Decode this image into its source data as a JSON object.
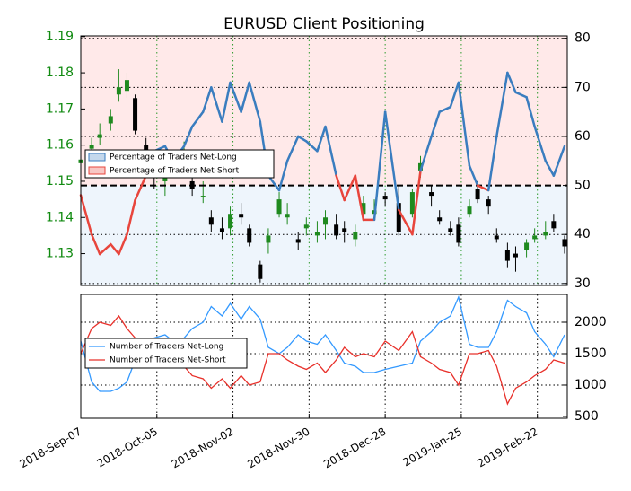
{
  "chart_data": [
    {
      "type": "candlestick",
      "title": "EURUSD Client Positioning",
      "x": [
        "2018-09-07",
        "2018-09-11",
        "2018-09-14",
        "2018-09-18",
        "2018-09-21",
        "2018-09-24",
        "2018-09-27",
        "2018-10-01",
        "2018-10-04",
        "2018-10-08",
        "2018-10-11",
        "2018-10-15",
        "2018-10-18",
        "2018-10-22",
        "2018-10-25",
        "2018-10-29",
        "2018-11-01",
        "2018-11-05",
        "2018-11-08",
        "2018-11-12",
        "2018-11-15",
        "2018-11-19",
        "2018-11-22",
        "2018-11-26",
        "2018-11-29",
        "2018-12-03",
        "2018-12-06",
        "2018-12-10",
        "2018-12-13",
        "2018-12-17",
        "2018-12-20",
        "2018-12-24",
        "2018-12-28",
        "2019-01-02",
        "2019-01-07",
        "2019-01-10",
        "2019-01-14",
        "2019-01-17",
        "2019-01-21",
        "2019-01-24",
        "2019-01-28",
        "2019-01-31",
        "2019-02-04",
        "2019-02-07",
        "2019-02-11",
        "2019-02-14",
        "2019-02-18",
        "2019-02-21",
        "2019-02-25",
        "2019-02-28",
        "2019-03-04"
      ],
      "open": [
        1.155,
        1.159,
        1.162,
        1.166,
        1.174,
        1.175,
        1.173,
        1.16,
        1.152,
        1.15,
        1.153,
        1.156,
        1.15,
        1.146,
        1.14,
        1.137,
        1.137,
        1.141,
        1.137,
        1.127,
        1.133,
        1.141,
        1.14,
        1.134,
        1.137,
        1.135,
        1.138,
        1.138,
        1.137,
        1.134,
        1.141,
        1.141,
        1.146,
        1.144,
        1.141,
        1.153,
        1.147,
        1.14,
        1.137,
        1.138,
        1.141,
        1.148,
        1.145,
        1.135,
        1.131,
        1.13,
        1.131,
        1.134,
        1.135,
        1.139,
        1.134
      ],
      "high": [
        1.158,
        1.162,
        1.166,
        1.17,
        1.181,
        1.18,
        1.174,
        1.162,
        1.155,
        1.153,
        1.158,
        1.161,
        1.152,
        1.15,
        1.142,
        1.14,
        1.143,
        1.144,
        1.138,
        1.128,
        1.137,
        1.147,
        1.144,
        1.136,
        1.14,
        1.139,
        1.142,
        1.141,
        1.139,
        1.138,
        1.146,
        1.145,
        1.147,
        1.149,
        1.148,
        1.157,
        1.149,
        1.142,
        1.139,
        1.14,
        1.145,
        1.15,
        1.146,
        1.137,
        1.133,
        1.132,
        1.134,
        1.137,
        1.139,
        1.141,
        1.135
      ],
      "low": [
        1.152,
        1.156,
        1.16,
        1.164,
        1.172,
        1.173,
        1.163,
        1.156,
        1.148,
        1.146,
        1.151,
        1.154,
        1.146,
        1.144,
        1.136,
        1.134,
        1.135,
        1.138,
        1.132,
        1.122,
        1.13,
        1.14,
        1.138,
        1.131,
        1.135,
        1.133,
        1.134,
        1.134,
        1.133,
        1.132,
        1.139,
        1.14,
        1.143,
        1.135,
        1.14,
        1.151,
        1.143,
        1.138,
        1.135,
        1.132,
        1.14,
        1.144,
        1.141,
        1.133,
        1.126,
        1.125,
        1.129,
        1.133,
        1.134,
        1.136,
        1.13
      ],
      "close": [
        1.156,
        1.16,
        1.163,
        1.168,
        1.176,
        1.178,
        1.164,
        1.158,
        1.151,
        1.152,
        1.154,
        1.158,
        1.148,
        1.146,
        1.138,
        1.136,
        1.141,
        1.14,
        1.133,
        1.123,
        1.135,
        1.145,
        1.141,
        1.133,
        1.138,
        1.136,
        1.14,
        1.135,
        1.136,
        1.136,
        1.144,
        1.142,
        1.145,
        1.136,
        1.147,
        1.155,
        1.146,
        1.139,
        1.136,
        1.133,
        1.143,
        1.145,
        1.143,
        1.134,
        1.128,
        1.129,
        1.133,
        1.135,
        1.136,
        1.137,
        1.132
      ],
      "up_color": "#1f8a1f",
      "down_color": "#000000",
      "ylim": [
        1.1212,
        1.1902
      ],
      "yticks": [
        1.13,
        1.14,
        1.15,
        1.16,
        1.17,
        1.18,
        1.19
      ],
      "ytick_color": "#108a10",
      "y2lim": [
        29.6,
        80.5
      ],
      "y2ticks": [
        30,
        40,
        50,
        60,
        70,
        80
      ],
      "sentiment": {
        "axis": "y2",
        "values": [
          48,
          40,
          36,
          38,
          36,
          40,
          47,
          52,
          57,
          58,
          55,
          58,
          62,
          65,
          70,
          63,
          71,
          65,
          71,
          63,
          52,
          49,
          55,
          60,
          59,
          57,
          62,
          52,
          47,
          52,
          43,
          43,
          65,
          45,
          40,
          53,
          60,
          65,
          66,
          71,
          54,
          50,
          49,
          60,
          73,
          69,
          68,
          62,
          55,
          52,
          58
        ]
      },
      "threshold": 50,
      "legend": [
        {
          "name": "Percentage of Traders Net-Long",
          "color": "#3a7dbf"
        },
        {
          "name": "Percentage of Traders Net-Short",
          "color": "#e8453c"
        }
      ],
      "grid": true
    },
    {
      "type": "line",
      "x": [
        "2018-09-07",
        "2018-09-11",
        "2018-09-14",
        "2018-09-18",
        "2018-09-21",
        "2018-09-24",
        "2018-09-27",
        "2018-10-01",
        "2018-10-04",
        "2018-10-08",
        "2018-10-11",
        "2018-10-15",
        "2018-10-18",
        "2018-10-22",
        "2018-10-25",
        "2018-10-29",
        "2018-11-01",
        "2018-11-05",
        "2018-11-08",
        "2018-11-12",
        "2018-11-15",
        "2018-11-19",
        "2018-11-22",
        "2018-11-26",
        "2018-11-29",
        "2018-12-03",
        "2018-12-06",
        "2018-12-10",
        "2018-12-13",
        "2018-12-17",
        "2018-12-20",
        "2018-12-24",
        "2018-12-28",
        "2019-01-02",
        "2019-01-07",
        "2019-01-10",
        "2019-01-14",
        "2019-01-17",
        "2019-01-21",
        "2019-01-24",
        "2019-01-28",
        "2019-01-31",
        "2019-02-04",
        "2019-02-07",
        "2019-02-11",
        "2019-02-14",
        "2019-02-18",
        "2019-02-21",
        "2019-02-25",
        "2019-02-28",
        "2019-03-04"
      ],
      "series": [
        {
          "name": "Number of Traders Net-Long",
          "color": "#3399ff",
          "values": [
            1700,
            1050,
            900,
            900,
            950,
            1050,
            1400,
            1600,
            1750,
            1800,
            1700,
            1750,
            1900,
            2000,
            2250,
            2100,
            2300,
            2050,
            2250,
            2050,
            1600,
            1500,
            1600,
            1800,
            1700,
            1650,
            1800,
            1550,
            1350,
            1300,
            1200,
            1200,
            1250,
            1300,
            1350,
            1700,
            1850,
            2000,
            2100,
            2400,
            1650,
            1600,
            1600,
            1850,
            2350,
            2250,
            2150,
            1850,
            1650,
            1450,
            1800
          ]
        },
        {
          "name": "Number of Traders Net-Short",
          "color": "#e8302a",
          "values": [
            1500,
            1900,
            2000,
            1950,
            2100,
            1900,
            1750,
            1500,
            1300,
            1300,
            1400,
            1300,
            1150,
            1100,
            950,
            1100,
            950,
            1150,
            1000,
            1050,
            1500,
            1500,
            1400,
            1300,
            1250,
            1350,
            1200,
            1400,
            1600,
            1450,
            1500,
            1450,
            1700,
            1550,
            1850,
            1450,
            1350,
            1250,
            1200,
            1000,
            1500,
            1500,
            1550,
            1300,
            700,
            950,
            1050,
            1150,
            1250,
            1400,
            1350
          ]
        }
      ],
      "ylim": [
        471,
        2443
      ],
      "yticks": [
        500,
        1000,
        1500,
        2000
      ],
      "xlim": [
        "2018-09-07",
        "2019-03-05"
      ],
      "xticks": [
        {
          "value": "2018-09-07",
          "label": "2018-Sep-07"
        },
        {
          "value": "2018-10-05",
          "label": "2018-Oct-05"
        },
        {
          "value": "2018-11-02",
          "label": "2018-Nov-02"
        },
        {
          "value": "2018-11-30",
          "label": "2018-Nov-30"
        },
        {
          "value": "2018-12-28",
          "label": "2018-Dec-28"
        },
        {
          "value": "2019-01-25",
          "label": "2019-Jan-25"
        },
        {
          "value": "2019-02-22",
          "label": "2019-Feb-22"
        }
      ],
      "grid": true
    }
  ]
}
